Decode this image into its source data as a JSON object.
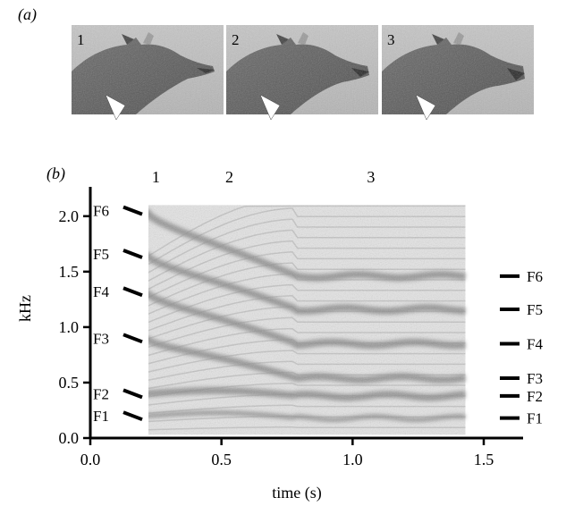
{
  "panel_a": {
    "label": "(a)",
    "frames": [
      {
        "number": "1"
      },
      {
        "number": "2"
      },
      {
        "number": "3"
      }
    ]
  },
  "panel_b": {
    "label": "(b)",
    "frame_markers": [
      {
        "label": "1",
        "time": 0.25
      },
      {
        "label": "2",
        "time": 0.53
      },
      {
        "label": "3",
        "time": 1.07
      }
    ],
    "formants_start": [
      {
        "label": "F6",
        "freq": 2.05
      },
      {
        "label": "F5",
        "freq": 1.66
      },
      {
        "label": "F4",
        "freq": 1.32
      },
      {
        "label": "F3",
        "freq": 0.9
      },
      {
        "label": "F2",
        "freq": 0.4
      },
      {
        "label": "F1",
        "freq": 0.2
      }
    ],
    "formants_end": [
      {
        "label": "F6",
        "freq": 1.46
      },
      {
        "label": "F5",
        "freq": 1.16
      },
      {
        "label": "F4",
        "freq": 0.85
      },
      {
        "label": "F3",
        "freq": 0.54
      },
      {
        "label": "F2",
        "freq": 0.38
      },
      {
        "label": "F1",
        "freq": 0.18
      }
    ]
  },
  "chart_data": {
    "type": "heatmap",
    "xlabel": "time (s)",
    "ylabel": "kHz",
    "xlim": [
      0.0,
      1.65
    ],
    "ylim": [
      0.0,
      2.2
    ],
    "xticks": [
      "0.0",
      "0.5",
      "1.0",
      "1.5"
    ],
    "yticks": [
      "0.0",
      "0.5",
      "1.0",
      "1.5",
      "2.0"
    ],
    "spectrogram_time_range": [
      0.21,
      1.43
    ],
    "spectrogram_freq_range": [
      0.03,
      2.1
    ]
  }
}
